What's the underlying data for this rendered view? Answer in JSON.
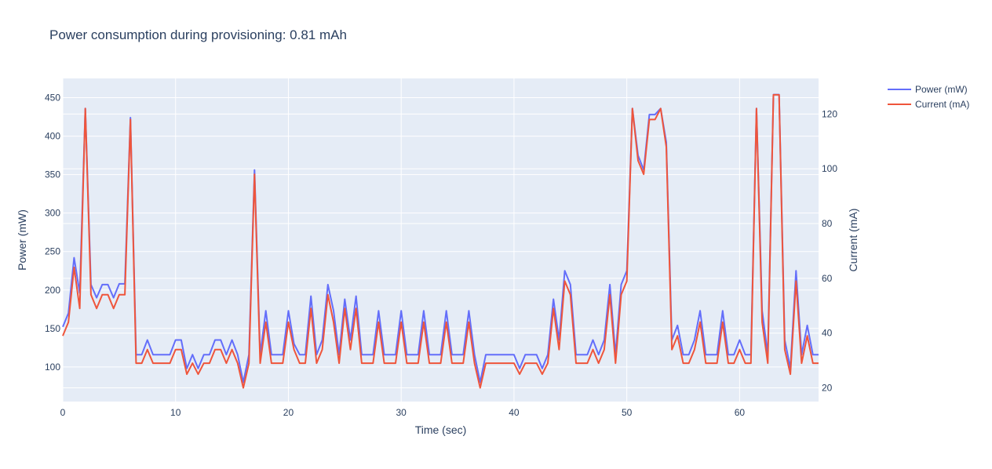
{
  "chart_data": {
    "type": "line",
    "title": "Power consumption during provisioning: 0.81 mAh",
    "xlabel": "Time (sec)",
    "ylabel": "Power (mW)",
    "y2label": "Current (mA)",
    "xlim": [
      0,
      67
    ],
    "ylim": [
      55,
      475
    ],
    "y2lim": [
      15,
      133
    ],
    "xticks": [
      0,
      10,
      20,
      30,
      40,
      50,
      60
    ],
    "yticks": [
      100,
      150,
      200,
      250,
      300,
      350,
      400,
      450
    ],
    "y2ticks": [
      20,
      40,
      60,
      80,
      100,
      120
    ],
    "grid": true,
    "legend_position": "top-right",
    "series": [
      {
        "name": "Power (mW)",
        "axis": "left",
        "color": "#636efa",
        "x": [
          0,
          0.5,
          1,
          1.5,
          2,
          2.5,
          3,
          3.5,
          4,
          4.5,
          5,
          5.5,
          6,
          6.5,
          7,
          7.5,
          8,
          8.5,
          9,
          9.5,
          10,
          10.5,
          11,
          11.5,
          12,
          12.5,
          13,
          13.5,
          14,
          14.5,
          15,
          15.5,
          16,
          16.5,
          17,
          17.5,
          18,
          18.5,
          19,
          19.5,
          20,
          20.5,
          21,
          21.5,
          22,
          22.5,
          23,
          23.5,
          24,
          24.5,
          25,
          25.5,
          26,
          26.5,
          27,
          27.5,
          28,
          28.5,
          29,
          29.5,
          30,
          30.5,
          31,
          31.5,
          32,
          32.5,
          33,
          33.5,
          34,
          34.5,
          35,
          35.5,
          36,
          36.5,
          37,
          37.5,
          38,
          38.5,
          39,
          39.5,
          40,
          40.5,
          41,
          41.5,
          42,
          42.5,
          43,
          43.5,
          44,
          44.5,
          45,
          45.5,
          46,
          46.5,
          47,
          47.5,
          48,
          48.5,
          49,
          49.5,
          50,
          50.5,
          51,
          51.5,
          52,
          52.5,
          53,
          53.5,
          54,
          54.5,
          55,
          55.5,
          56,
          56.5,
          57,
          57.5,
          58,
          58.5,
          59,
          59.5,
          60,
          60.5,
          61,
          61.5,
          62,
          62.5,
          63,
          63.5,
          64,
          64.5,
          65,
          65.5,
          66,
          66.5,
          67
        ],
        "values": [
          152,
          170,
          242,
          196,
          436,
          207,
          190,
          207,
          207,
          190,
          208,
          208,
          424,
          116,
          116,
          135,
          116,
          116,
          116,
          116,
          135,
          135,
          98,
          116,
          98,
          116,
          116,
          135,
          135,
          116,
          135,
          116,
          80,
          116,
          356,
          116,
          173,
          116,
          116,
          116,
          173,
          130,
          116,
          116,
          192,
          116,
          135,
          207,
          173,
          116,
          188,
          135,
          192,
          116,
          116,
          116,
          173,
          116,
          116,
          116,
          173,
          116,
          116,
          116,
          173,
          116,
          116,
          116,
          173,
          116,
          116,
          116,
          173,
          116,
          80,
          116,
          116,
          116,
          116,
          116,
          116,
          98,
          116,
          116,
          116,
          98,
          116,
          188,
          135,
          225,
          207,
          116,
          116,
          116,
          135,
          116,
          135,
          207,
          116,
          207,
          225,
          436,
          375,
          356,
          428,
          428,
          436,
          392,
          135,
          154,
          116,
          116,
          135,
          173,
          116,
          116,
          116,
          173,
          116,
          116,
          135,
          116,
          116,
          436,
          173,
          116,
          454,
          454,
          135,
          98,
          225,
          116,
          154,
          116,
          116
        ]
      },
      {
        "name": "Current (mA)",
        "axis": "right",
        "color": "#ef553b",
        "x": [
          0,
          0.5,
          1,
          1.5,
          2,
          2.5,
          3,
          3.5,
          4,
          4.5,
          5,
          5.5,
          6,
          6.5,
          7,
          7.5,
          8,
          8.5,
          9,
          9.5,
          10,
          10.5,
          11,
          11.5,
          12,
          12.5,
          13,
          13.5,
          14,
          14.5,
          15,
          15.5,
          16,
          16.5,
          17,
          17.5,
          18,
          18.5,
          19,
          19.5,
          20,
          20.5,
          21,
          21.5,
          22,
          22.5,
          23,
          23.5,
          24,
          24.5,
          25,
          25.5,
          26,
          26.5,
          27,
          27.5,
          28,
          28.5,
          29,
          29.5,
          30,
          30.5,
          31,
          31.5,
          32,
          32.5,
          33,
          33.5,
          34,
          34.5,
          35,
          35.5,
          36,
          36.5,
          37,
          37.5,
          38,
          38.5,
          39,
          39.5,
          40,
          40.5,
          41,
          41.5,
          42,
          42.5,
          43,
          43.5,
          44,
          44.5,
          45,
          45.5,
          46,
          46.5,
          47,
          47.5,
          48,
          48.5,
          49,
          49.5,
          50,
          50.5,
          51,
          51.5,
          52,
          52.5,
          53,
          53.5,
          54,
          54.5,
          55,
          55.5,
          56,
          56.5,
          57,
          57.5,
          58,
          58.5,
          59,
          59.5,
          60,
          60.5,
          61,
          61.5,
          62,
          62.5,
          63,
          63.5,
          64,
          64.5,
          65,
          65.5,
          66,
          66.5,
          67
        ],
        "values": [
          39,
          44,
          64,
          49,
          122,
          54,
          49,
          54,
          54,
          49,
          54,
          54,
          118,
          29,
          29,
          34,
          29,
          29,
          29,
          29,
          34,
          34,
          25,
          29,
          25,
          29,
          29,
          34,
          34,
          29,
          34,
          29,
          20,
          29,
          98,
          29,
          44,
          29,
          29,
          29,
          44,
          34,
          29,
          29,
          49,
          29,
          34,
          54,
          44,
          29,
          49,
          34,
          49,
          29,
          29,
          29,
          44,
          29,
          29,
          29,
          44,
          29,
          29,
          29,
          44,
          29,
          29,
          29,
          44,
          29,
          29,
          29,
          44,
          29,
          20,
          29,
          29,
          29,
          29,
          29,
          29,
          25,
          29,
          29,
          29,
          25,
          29,
          49,
          34,
          59,
          54,
          29,
          29,
          29,
          34,
          29,
          34,
          54,
          29,
          54,
          59,
          122,
          103,
          98,
          118,
          118,
          122,
          108,
          34,
          39,
          29,
          29,
          34,
          44,
          29,
          29,
          29,
          44,
          29,
          29,
          34,
          29,
          29,
          122,
          44,
          29,
          127,
          127,
          34,
          25,
          59,
          29,
          39,
          29,
          29
        ]
      }
    ]
  }
}
